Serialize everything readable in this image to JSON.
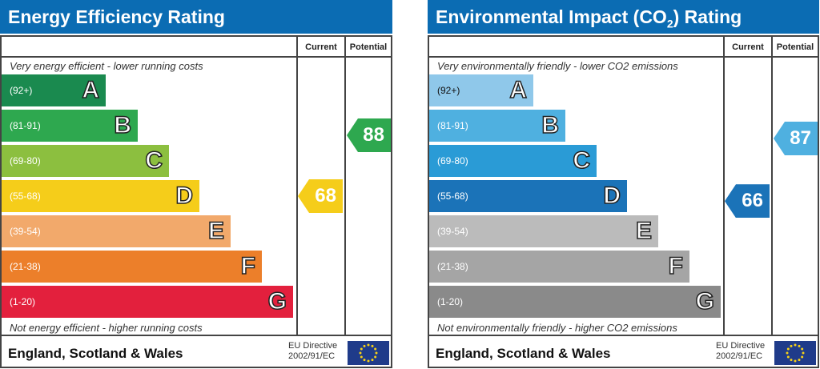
{
  "energy": {
    "title": "Energy Efficiency Rating",
    "current_label": "Current",
    "potential_label": "Potential",
    "top_note": "Very energy efficient - lower running costs",
    "bottom_note": "Not energy efficient - higher running costs",
    "bands": [
      {
        "range": "(92+)",
        "letter": "A",
        "color": "#1a8a4f"
      },
      {
        "range": "(81-91)",
        "letter": "B",
        "color": "#2ea84f"
      },
      {
        "range": "(69-80)",
        "letter": "C",
        "color": "#8cbf3f"
      },
      {
        "range": "(55-68)",
        "letter": "D",
        "color": "#f5cd1a"
      },
      {
        "range": "(39-54)",
        "letter": "E",
        "color": "#f2a96b"
      },
      {
        "range": "(21-38)",
        "letter": "F",
        "color": "#ec7f2a"
      },
      {
        "range": "(1-20)",
        "letter": "G",
        "color": "#e3203d"
      }
    ],
    "current": {
      "value": "68",
      "band": "D",
      "color": "#f5cd1a"
    },
    "potential": {
      "value": "88",
      "band": "B",
      "color": "#2ea84f"
    },
    "footer": "England, Scotland & Wales",
    "eu_line1": "EU Directive",
    "eu_line2": "2002/91/EC"
  },
  "co2": {
    "title_pre": "Environmental Impact (CO",
    "title_sub": "2",
    "title_post": ") Rating",
    "current_label": "Current",
    "potential_label": "Potential",
    "top_note": "Very environmentally friendly - lower CO2 emissions",
    "bottom_note": "Not environmentally friendly - higher CO2 emissions",
    "bands": [
      {
        "range": "(92+)",
        "letter": "A",
        "color": "#8fc8ea"
      },
      {
        "range": "(81-91)",
        "letter": "B",
        "color": "#4fb0e0"
      },
      {
        "range": "(69-80)",
        "letter": "C",
        "color": "#2a9bd6"
      },
      {
        "range": "(55-68)",
        "letter": "D",
        "color": "#1b73b8"
      },
      {
        "range": "(39-54)",
        "letter": "E",
        "color": "#bbbbbb"
      },
      {
        "range": "(21-38)",
        "letter": "F",
        "color": "#a5a5a5"
      },
      {
        "range": "(1-20)",
        "letter": "G",
        "color": "#8a8a8a"
      }
    ],
    "current": {
      "value": "66",
      "band": "D",
      "color": "#1b73b8"
    },
    "potential": {
      "value": "87",
      "band": "B",
      "color": "#4fb0e0"
    },
    "footer": "England, Scotland & Wales",
    "eu_line1": "EU Directive",
    "eu_line2": "2002/91/EC"
  }
}
